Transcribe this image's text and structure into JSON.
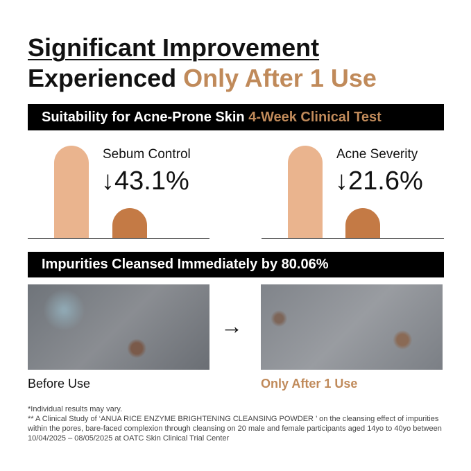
{
  "header": {
    "title_line1": "Significant Improvement",
    "title_line2_plain": "Experienced",
    "title_line2_accent": "Only After 1 Use"
  },
  "banner1": {
    "text": "Suitability for Acne-Prone Skin",
    "accent": "4-Week Clinical Test"
  },
  "metrics": [
    {
      "label": "Sebum Control",
      "result": "↓43.1%"
    },
    {
      "label": "Acne Severity",
      "result": "↓21.6%"
    }
  ],
  "banner2": {
    "text": "Impurities Cleansed Immediately by 80.06%"
  },
  "images": {
    "before": "Before Use",
    "after": "Only After 1 Use",
    "arrow": "→"
  },
  "footnotes": [
    "*Individual results may vary.",
    "** A Clinical Study of ‘ANUA RICE ENZYME BRIGHTENING CLEANSING POWDER ’ on the cleansing effect of impurities within the pores, bare-faced complexion through cleansing on 20 male and female participants aged 14yo to 40yo between 10/04/2025 – 08/05/2025 at OATC Skin Clinical Trial Center"
  ]
}
